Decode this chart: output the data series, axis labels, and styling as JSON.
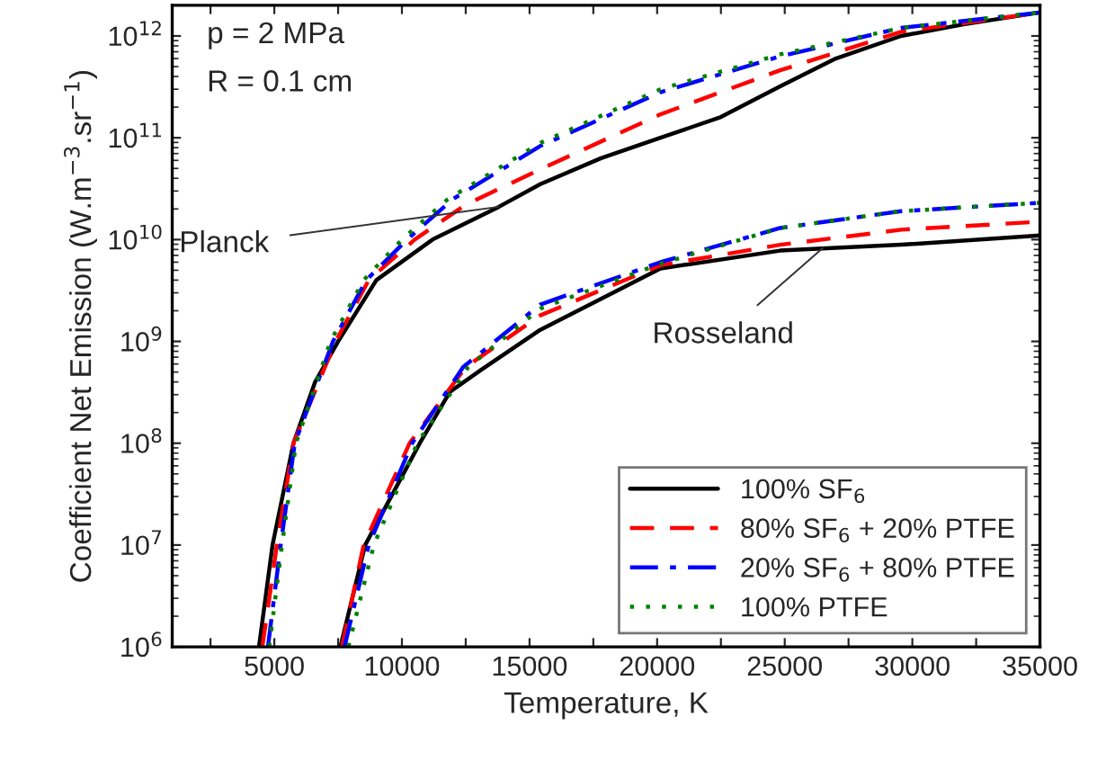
{
  "chart_data": {
    "type": "line",
    "xlabel": "Temperature, K",
    "ylabel": "Coefficient Net Emission (W.m$^{−3}$.sr$^{−1}$)",
    "log": "y",
    "grid": false,
    "legend": "bottom right",
    "marker": "none",
    "xlim": [
      1000,
      35000
    ],
    "xticks": [
      {
        "value": 2500,
        "label": null
      },
      5000,
      {
        "value": 7500,
        "label": null
      },
      10000,
      {
        "value": 12500,
        "label": null
      },
      15000,
      {
        "value": 17500,
        "label": null
      },
      20000,
      {
        "value": 22500,
        "label": null
      },
      25000,
      {
        "value": 27500,
        "label": null
      },
      30000,
      {
        "value": 32500,
        "label": null
      },
      35000
    ],
    "ylim": [
      1000000,
      2000000000000
    ],
    "yticks": [
      {
        "value": 1000000,
        "label": "10$^{6}$"
      },
      {
        "value": 10000000,
        "label": "10$^{7}$"
      },
      {
        "value": 100000000,
        "label": "10$^{8}$"
      },
      {
        "value": 1000000000,
        "label": "10$^{9}$"
      },
      {
        "value": 10000000000,
        "label": "10$^{10}$"
      },
      {
        "value": 100000000000,
        "label": "10$^{11}$"
      },
      {
        "value": 1000000000000,
        "label": "10$^{12}$"
      }
    ],
    "annotations": [
      "p = 2 MPa",
      "R = 0.1 cm",
      {
        "text": "Planck",
        "x": 13800,
        "y": 21000000000
      },
      {
        "text": "Rosseland",
        "x": 26500,
        "y": 8300000000
      }
    ],
    "series": [
      {
        "name": "100% SF$_{6}$",
        "color": "#000000",
        "line_style": "solid",
        "x": [
          4400,
          4930,
          5750,
          6600,
          7500,
          9000,
          11200,
          13800,
          15420,
          17800,
          20130,
          22500,
          24820,
          27000,
          29560,
          32000,
          35000
        ],
        "values": [
          1000000,
          10000000,
          100000000,
          400000000,
          1000000000,
          4000000000,
          10000000000,
          21000000000,
          35000000000,
          63000000000,
          100000000000,
          160000000000,
          320000000000,
          600000000000,
          1000000000000,
          1300000000000,
          1700000000000
        ]
      },
      {
        "name": "80% SF$_{6}$ + 20% PTFE",
        "color": "#ff0000",
        "line_style": "dashed",
        "x": [
          4530,
          5100,
          5750,
          7400,
          8700,
          10500,
          12500,
          15420,
          20130,
          24820,
          29560,
          35000
        ],
        "values": [
          1000000,
          10000000,
          100000000,
          1000000000,
          4000000000,
          10000000000,
          22000000000,
          49000000000,
          170000000000,
          460000000000,
          1100000000000,
          1700000000000
        ]
      },
      {
        "name": "20% SF$_{6}$ + 80% PTFE",
        "color": "#0000ff",
        "line_style": "dashdot",
        "x": [
          4750,
          5250,
          5800,
          7300,
          8600,
          10200,
          12000,
          15420,
          20130,
          24820,
          29560,
          35000
        ],
        "values": [
          1000000,
          10000000,
          100000000,
          1000000000,
          4000000000,
          10000000000,
          25000000000,
          83000000000,
          280000000000,
          630000000000,
          1200000000000,
          1700000000000
        ]
      },
      {
        "name": "100% PTFE",
        "color": "#008000",
        "line_style": "dotted",
        "x": [
          4800,
          5300,
          5850,
          7200,
          8500,
          10000,
          11800,
          15420,
          20130,
          24820,
          29560,
          35000
        ],
        "values": [
          1000000,
          10000000,
          100000000,
          1000000000,
          4000000000,
          10000000000,
          25000000000,
          89000000000,
          300000000000,
          660000000000,
          1200000000000,
          1700000000000
        ]
      },
      {
        "color": "#000000",
        "line_style": "solid",
        "x": [
          7590,
          8560,
          10700,
          11880,
          13080,
          15420,
          20130,
          24820,
          29560,
          35000
        ],
        "values": [
          1000000,
          10000000,
          100000000,
          320000000,
          520000000,
          1300000000,
          5200000000,
          7800000000,
          8900000000,
          11000000000
        ]
      },
      {
        "color": "#ff0000",
        "line_style": "dashed",
        "x": [
          7650,
          8500,
          10300,
          12500,
          15420,
          20130,
          24820,
          29560,
          35000
        ],
        "values": [
          1000000,
          10000000,
          100000000,
          560000000,
          1800000000,
          5600000000,
          8900000000,
          12500000000,
          15000000000
        ]
      },
      {
        "color": "#0000ff",
        "line_style": "dashdot",
        "x": [
          7750,
          8700,
          10400,
          12400,
          15420,
          20130,
          24820,
          29560,
          35000
        ],
        "values": [
          1000000,
          10000000,
          100000000,
          560000000,
          2300000000,
          6000000000,
          13000000000,
          19000000000,
          23000000000
        ]
      },
      {
        "color": "#008000",
        "line_style": "dotted",
        "x": [
          7900,
          8900,
          10600,
          12600,
          15420,
          20130,
          24820,
          29560,
          35000
        ],
        "values": [
          1000000,
          10000000,
          100000000,
          560000000,
          2100000000,
          5800000000,
          13000000000,
          19000000000,
          23000000000
        ]
      }
    ]
  }
}
